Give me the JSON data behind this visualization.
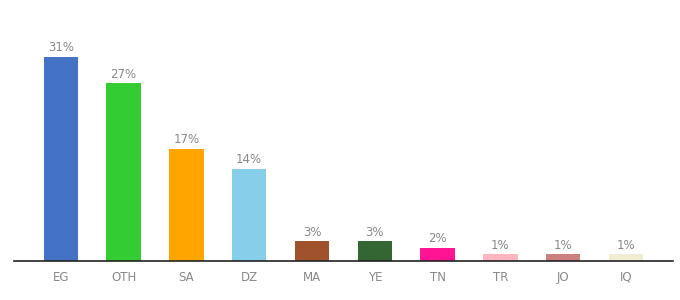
{
  "categories": [
    "EG",
    "OTH",
    "SA",
    "DZ",
    "MA",
    "YE",
    "TN",
    "TR",
    "JO",
    "IQ"
  ],
  "values": [
    31,
    27,
    17,
    14,
    3,
    3,
    2,
    1,
    1,
    1
  ],
  "bar_colors": [
    "#4472C4",
    "#33CC33",
    "#FFA500",
    "#87CEEB",
    "#A0522D",
    "#336633",
    "#FF1493",
    "#FFB6C1",
    "#CD8080",
    "#F0EDD0"
  ],
  "labels": [
    "31%",
    "27%",
    "17%",
    "14%",
    "3%",
    "3%",
    "2%",
    "1%",
    "1%",
    "1%"
  ],
  "ylim": [
    0,
    36
  ],
  "background_color": "#ffffff",
  "bar_width": 0.55,
  "label_fontsize": 8.5,
  "tick_fontsize": 8.5,
  "label_color": "#888888"
}
